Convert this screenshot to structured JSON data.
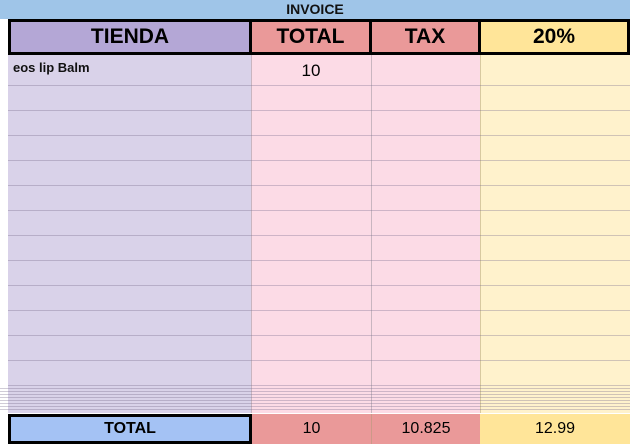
{
  "title": "INVOICE",
  "headers": {
    "tienda": "TIENDA",
    "total": "TOTAL",
    "tax": "TAX",
    "pct": "20%"
  },
  "rows": [
    {
      "tienda": "eos lip Balm",
      "total": "10",
      "tax": "",
      "pct": ""
    }
  ],
  "totals": {
    "label": "TOTAL",
    "total": "10",
    "tax": "10.825",
    "pct": "12.99"
  },
  "colors": {
    "title_bg": "#9fc5e8",
    "tienda_header": "#b4a7d6",
    "tienda_body": "#d9d2e9",
    "red_header": "#ea9999",
    "pink_body": "#fcdbe6",
    "yellow_header": "#ffe599",
    "yellow_body": "#fff2cc",
    "total_label": "#a4c2f4"
  }
}
